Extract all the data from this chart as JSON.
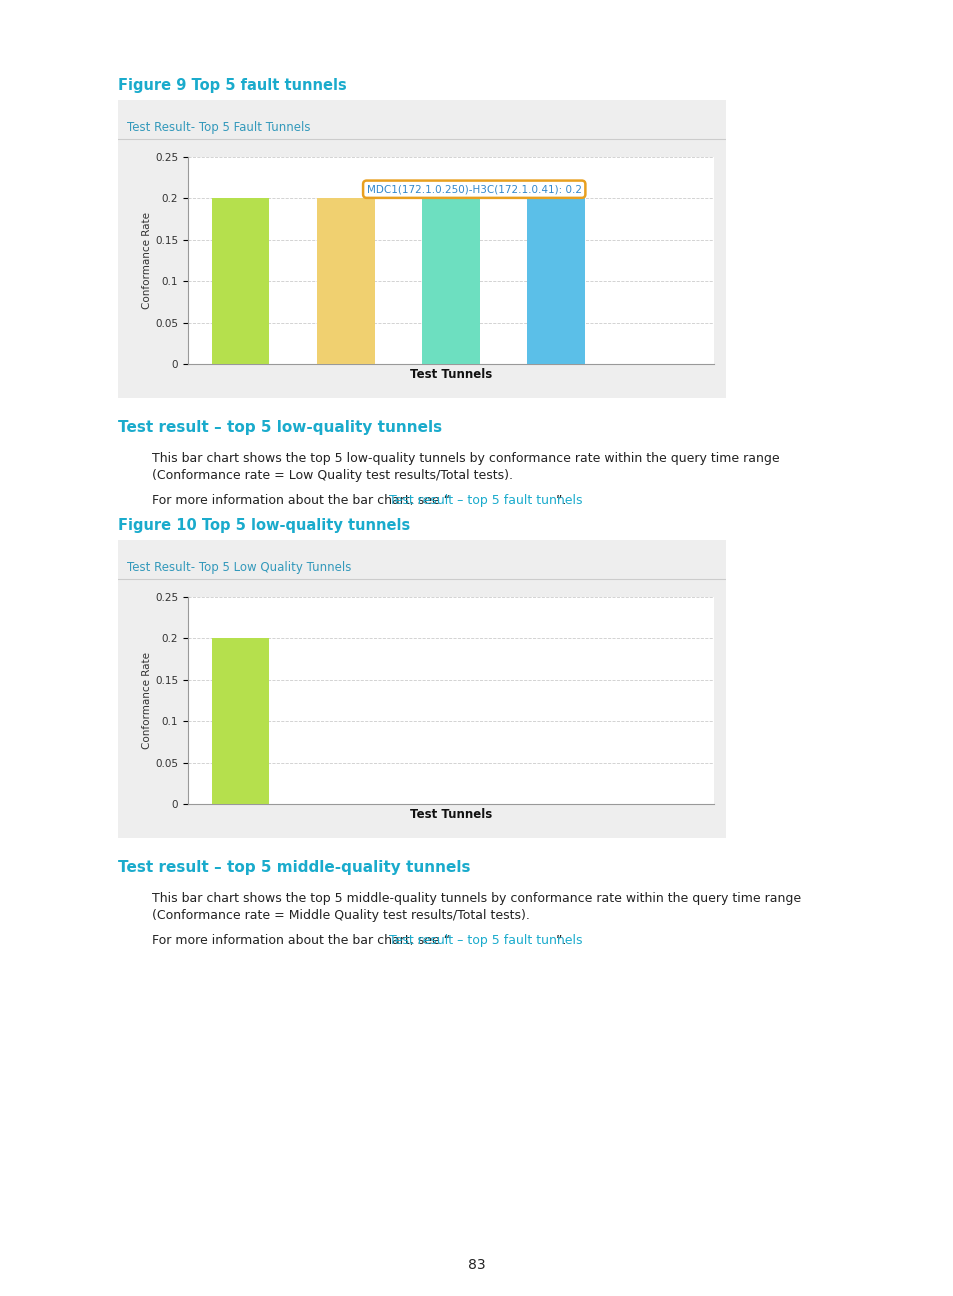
{
  "page_bg": "#ffffff",
  "figure_title1": "Figure 9 Top 5 fault tunnels",
  "chart1_title": "Test Result- Top 5 Fault Tunnels",
  "chart1_bars": [
    0.2,
    0.2,
    0.2,
    0.2
  ],
  "chart1_colors": [
    "#b5e04d",
    "#f0d070",
    "#6ddfc0",
    "#5bbfe8"
  ],
  "chart1_xlabel": "Test Tunnels",
  "chart1_ylabel": "Conformance Rate",
  "chart1_ylim": [
    0,
    0.25
  ],
  "chart1_yticks": [
    0,
    0.05,
    0.1,
    0.15,
    0.2,
    0.25
  ],
  "chart1_tooltip_text": "MDC1(172.1.0.250)-H3C(172.1.0.41): 0.2",
  "chart1_tooltip_border": "#e8a020",
  "chart1_tooltip_text_color": "#3388cc",
  "section2_heading": "Test result – top 5 low-quality tunnels",
  "section2_body1_line1": "This bar chart shows the top 5 low-quality tunnels by conformance rate within the query time range",
  "section2_body1_line2": "(Conformance rate = Low Quality test results/Total tests).",
  "section2_for_pre": "For more information about the bar chart, see “",
  "section2_for_link": "Test result – top 5 fault tunnels",
  "section2_for_post": "”.",
  "figure_title2": "Figure 10 Top 5 low-quality tunnels",
  "chart2_title": "Test Result- Top 5 Low Quality Tunnels",
  "chart2_bars": [
    0.2
  ],
  "chart2_colors": [
    "#b5e04d"
  ],
  "chart2_xlabel": "Test Tunnels",
  "chart2_ylabel": "Conformance Rate",
  "chart2_ylim": [
    0,
    0.25
  ],
  "chart2_yticks": [
    0,
    0.05,
    0.1,
    0.15,
    0.2,
    0.25
  ],
  "section3_heading": "Test result – top 5 middle-quality tunnels",
  "section3_body1_line1": "This bar chart shows the top 5 middle-quality tunnels by conformance rate within the query time range",
  "section3_body1_line2": "(Conformance rate = Middle Quality test results/Total tests).",
  "section3_for_pre": "For more information about the bar chart, see “",
  "section3_for_link": "Test result – top 5 fault tunnels",
  "section3_for_post": "”.",
  "page_number": "83",
  "heading_color": "#1aabcc",
  "link_color": "#1aabcc",
  "body_color": "#222222",
  "chart_panel_bg": "#eeeeee",
  "chart_inner_bg": "#ffffff",
  "grid_color": "#cccccc",
  "axis_color": "#999999",
  "chart_title_color": "#3399bb"
}
